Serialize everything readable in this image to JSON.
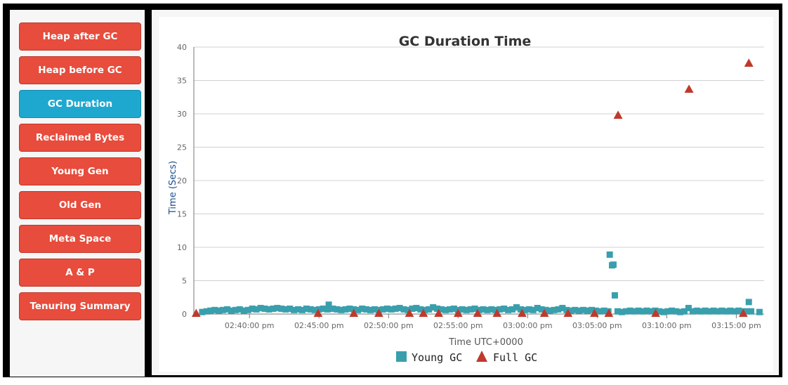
{
  "sidebar": {
    "items": [
      {
        "label": "Heap after GC",
        "active": false
      },
      {
        "label": "Heap before GC",
        "active": false
      },
      {
        "label": "GC Duration",
        "active": true
      },
      {
        "label": "Reclaimed Bytes",
        "active": false
      },
      {
        "label": "Young Gen",
        "active": false
      },
      {
        "label": "Old Gen",
        "active": false
      },
      {
        "label": "Meta Space",
        "active": false
      },
      {
        "label": "A & P",
        "active": false
      },
      {
        "label": "Tenuring Summary",
        "active": false
      }
    ]
  },
  "colors": {
    "nav_default": "#e74c3c",
    "nav_active": "#1fa8cf",
    "young_gc": "#3a9fad",
    "full_gc": "#c0392b"
  },
  "chart_data": {
    "type": "scatter",
    "title": "GC Duration Time",
    "xlabel": "Time UTC+0000",
    "ylabel": "Time (Secs)",
    "ylim": [
      0,
      40
    ],
    "yticks": [
      "0",
      "5",
      "10",
      "15",
      "20",
      "25",
      "30",
      "35",
      "40"
    ],
    "xlim": [
      "02:36:00 pm",
      "03:17:00 pm"
    ],
    "xticks": [
      "02:40:00 pm",
      "02:45:00 pm",
      "02:50:00 pm",
      "02:55:00 pm",
      "03:00:00 pm",
      "03:05:00 pm",
      "03:10:00 pm",
      "03:15:00 pm"
    ],
    "grid": true,
    "legend_position": "bottom",
    "series": [
      {
        "name": "Young GC",
        "marker": "square",
        "points": [
          [
            "02:36:36 pm",
            0.3
          ],
          [
            "02:36:55 pm",
            0.4
          ],
          [
            "02:37:12 pm",
            0.5
          ],
          [
            "02:37:30 pm",
            0.6
          ],
          [
            "02:37:48 pm",
            0.5
          ],
          [
            "02:38:05 pm",
            0.6
          ],
          [
            "02:38:24 pm",
            0.7
          ],
          [
            "02:38:42 pm",
            0.5
          ],
          [
            "02:39:00 pm",
            0.6
          ],
          [
            "02:39:18 pm",
            0.7
          ],
          [
            "02:39:36 pm",
            0.5
          ],
          [
            "02:39:54 pm",
            0.6
          ],
          [
            "02:40:12 pm",
            0.8
          ],
          [
            "02:40:30 pm",
            0.7
          ],
          [
            "02:40:48 pm",
            0.9
          ],
          [
            "02:41:06 pm",
            0.8
          ],
          [
            "02:41:24 pm",
            0.7
          ],
          [
            "02:41:42 pm",
            0.8
          ],
          [
            "02:42:00 pm",
            0.9
          ],
          [
            "02:42:18 pm",
            0.8
          ],
          [
            "02:42:36 pm",
            0.7
          ],
          [
            "02:42:54 pm",
            0.8
          ],
          [
            "02:43:12 pm",
            0.6
          ],
          [
            "02:43:30 pm",
            0.7
          ],
          [
            "02:43:48 pm",
            0.6
          ],
          [
            "02:44:06 pm",
            0.8
          ],
          [
            "02:44:24 pm",
            0.7
          ],
          [
            "02:44:42 pm",
            0.6
          ],
          [
            "02:45:00 pm",
            0.7
          ],
          [
            "02:45:18 pm",
            0.8
          ],
          [
            "02:45:36 pm",
            0.7
          ],
          [
            "02:45:42 pm",
            1.4
          ],
          [
            "02:46:00 pm",
            0.8
          ],
          [
            "02:46:18 pm",
            0.7
          ],
          [
            "02:46:36 pm",
            0.6
          ],
          [
            "02:46:54 pm",
            0.7
          ],
          [
            "02:47:12 pm",
            0.8
          ],
          [
            "02:47:30 pm",
            0.7
          ],
          [
            "02:47:48 pm",
            0.6
          ],
          [
            "02:48:06 pm",
            0.8
          ],
          [
            "02:48:24 pm",
            0.7
          ],
          [
            "02:48:42 pm",
            0.6
          ],
          [
            "02:49:00 pm",
            0.7
          ],
          [
            "02:49:18 pm",
            0.6
          ],
          [
            "02:49:36 pm",
            0.7
          ],
          [
            "02:49:54 pm",
            0.8
          ],
          [
            "02:50:12 pm",
            0.7
          ],
          [
            "02:50:30 pm",
            0.8
          ],
          [
            "02:50:48 pm",
            0.9
          ],
          [
            "02:51:06 pm",
            0.7
          ],
          [
            "02:51:24 pm",
            0.6
          ],
          [
            "02:51:42 pm",
            0.8
          ],
          [
            "02:52:00 pm",
            0.9
          ],
          [
            "02:52:18 pm",
            0.7
          ],
          [
            "02:52:36 pm",
            0.6
          ],
          [
            "02:52:54 pm",
            0.7
          ],
          [
            "02:53:12 pm",
            1.0
          ],
          [
            "02:53:30 pm",
            0.8
          ],
          [
            "02:53:48 pm",
            0.7
          ],
          [
            "02:54:06 pm",
            0.6
          ],
          [
            "02:54:24 pm",
            0.7
          ],
          [
            "02:54:42 pm",
            0.8
          ],
          [
            "02:55:00 pm",
            0.6
          ],
          [
            "02:55:18 pm",
            0.7
          ],
          [
            "02:55:36 pm",
            0.6
          ],
          [
            "02:55:54 pm",
            0.7
          ],
          [
            "02:56:12 pm",
            0.8
          ],
          [
            "02:56:30 pm",
            0.6
          ],
          [
            "02:56:48 pm",
            0.7
          ],
          [
            "02:57:06 pm",
            0.6
          ],
          [
            "02:57:24 pm",
            0.7
          ],
          [
            "02:57:42 pm",
            0.6
          ],
          [
            "02:58:00 pm",
            0.7
          ],
          [
            "02:58:18 pm",
            0.8
          ],
          [
            "02:58:36 pm",
            0.6
          ],
          [
            "02:58:54 pm",
            0.7
          ],
          [
            "02:59:12 pm",
            1.0
          ],
          [
            "02:59:30 pm",
            0.7
          ],
          [
            "02:59:48 pm",
            0.6
          ],
          [
            "03:00:06 pm",
            0.7
          ],
          [
            "03:00:24 pm",
            0.6
          ],
          [
            "03:00:42 pm",
            0.9
          ],
          [
            "03:01:00 pm",
            0.7
          ],
          [
            "03:01:18 pm",
            0.6
          ],
          [
            "03:01:36 pm",
            0.5
          ],
          [
            "03:01:54 pm",
            0.6
          ],
          [
            "03:02:12 pm",
            0.7
          ],
          [
            "03:02:30 pm",
            0.9
          ],
          [
            "03:02:48 pm",
            0.6
          ],
          [
            "03:03:06 pm",
            0.5
          ],
          [
            "03:03:24 pm",
            0.6
          ],
          [
            "03:03:42 pm",
            0.5
          ],
          [
            "03:04:00 pm",
            0.6
          ],
          [
            "03:04:18 pm",
            0.5
          ],
          [
            "03:04:36 pm",
            0.6
          ],
          [
            "03:04:54 pm",
            0.5
          ],
          [
            "03:05:12 pm",
            0.4
          ],
          [
            "03:05:30 pm",
            0.5
          ],
          [
            "03:05:48 pm",
            0.4
          ],
          [
            "03:05:54 pm",
            8.9
          ],
          [
            "03:06:04 pm",
            7.3
          ],
          [
            "03:06:10 pm",
            7.4
          ],
          [
            "03:06:16 pm",
            2.8
          ],
          [
            "03:06:28 pm",
            0.4
          ],
          [
            "03:06:46 pm",
            0.3
          ],
          [
            "03:07:04 pm",
            0.4
          ],
          [
            "03:07:22 pm",
            0.5
          ],
          [
            "03:07:40 pm",
            0.4
          ],
          [
            "03:07:58 pm",
            0.5
          ],
          [
            "03:08:16 pm",
            0.4
          ],
          [
            "03:08:34 pm",
            0.5
          ],
          [
            "03:08:52 pm",
            0.4
          ],
          [
            "03:09:10 pm",
            0.5
          ],
          [
            "03:09:28 pm",
            0.4
          ],
          [
            "03:09:46 pm",
            0.3
          ],
          [
            "03:10:04 pm",
            0.4
          ],
          [
            "03:10:22 pm",
            0.5
          ],
          [
            "03:10:40 pm",
            0.4
          ],
          [
            "03:10:58 pm",
            0.3
          ],
          [
            "03:11:16 pm",
            0.4
          ],
          [
            "03:11:34 pm",
            0.9
          ],
          [
            "03:11:52 pm",
            0.4
          ],
          [
            "03:12:10 pm",
            0.5
          ],
          [
            "03:12:28 pm",
            0.4
          ],
          [
            "03:12:46 pm",
            0.5
          ],
          [
            "03:13:04 pm",
            0.4
          ],
          [
            "03:13:22 pm",
            0.5
          ],
          [
            "03:13:40 pm",
            0.4
          ],
          [
            "03:13:58 pm",
            0.5
          ],
          [
            "03:14:16 pm",
            0.4
          ],
          [
            "03:14:34 pm",
            0.5
          ],
          [
            "03:14:52 pm",
            0.4
          ],
          [
            "03:15:10 pm",
            0.5
          ],
          [
            "03:15:28 pm",
            0.4
          ],
          [
            "03:15:46 pm",
            0.4
          ],
          [
            "03:15:54 pm",
            1.8
          ],
          [
            "03:16:04 pm",
            0.4
          ],
          [
            "03:16:40 pm",
            0.3
          ]
        ]
      },
      {
        "name": "Full GC",
        "marker": "triangle",
        "points": [
          [
            "02:36:10 pm",
            0.1
          ],
          [
            "02:44:56 pm",
            0.1
          ],
          [
            "02:47:30 pm",
            0.1
          ],
          [
            "02:49:18 pm",
            0.1
          ],
          [
            "02:51:30 pm",
            0.1
          ],
          [
            "02:52:30 pm",
            0.1
          ],
          [
            "02:53:36 pm",
            0.1
          ],
          [
            "02:55:00 pm",
            0.1
          ],
          [
            "02:56:24 pm",
            0.1
          ],
          [
            "02:57:48 pm",
            0.1
          ],
          [
            "02:59:36 pm",
            0.1
          ],
          [
            "03:01:12 pm",
            0.1
          ],
          [
            "03:02:54 pm",
            0.1
          ],
          [
            "03:04:48 pm",
            0.1
          ],
          [
            "03:05:50 pm",
            0.1
          ],
          [
            "03:06:30 pm",
            29.8
          ],
          [
            "03:09:12 pm",
            0.1
          ],
          [
            "03:11:36 pm",
            33.7
          ],
          [
            "03:15:30 pm",
            0.1
          ],
          [
            "03:15:54 pm",
            37.6
          ]
        ]
      }
    ]
  }
}
